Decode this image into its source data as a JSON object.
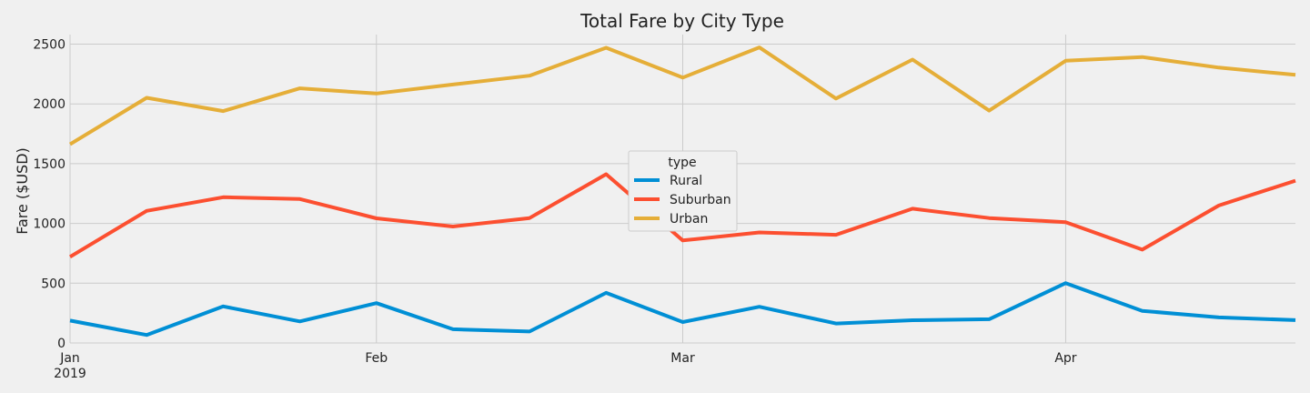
{
  "chart_data": {
    "type": "line",
    "title": "Total Fare by City Type",
    "xlabel": "",
    "ylabel": "Fare ($USD)",
    "ylim": [
      0,
      2580
    ],
    "yticks": [
      0,
      500,
      1000,
      1500,
      2000,
      2500
    ],
    "x": [
      "2019-01-06",
      "2019-01-13",
      "2019-01-20",
      "2019-01-27",
      "2019-02-03",
      "2019-02-10",
      "2019-02-17",
      "2019-02-24",
      "2019-03-03",
      "2019-03-10",
      "2019-03-17",
      "2019-03-24",
      "2019-03-31",
      "2019-04-07",
      "2019-04-14",
      "2019-04-21",
      "2019-04-28"
    ],
    "xticks": [
      {
        "label": "Jan",
        "sublabel": "2019",
        "date": "2019-01-06"
      },
      {
        "label": "Feb",
        "sublabel": "",
        "date": "2019-02-03"
      },
      {
        "label": "Mar",
        "sublabel": "",
        "date": "2019-03-03"
      },
      {
        "label": "Apr",
        "sublabel": "",
        "date": "2019-04-07"
      }
    ],
    "series": [
      {
        "name": "Rural",
        "color": "#008fd5",
        "values": [
          187,
          67,
          306,
          180,
          333,
          115,
          96,
          419,
          175,
          303,
          163,
          190,
          199,
          501,
          269,
          214,
          191
        ]
      },
      {
        "name": "Suburban",
        "color": "#fc4f30",
        "values": [
          721,
          1105,
          1219,
          1204,
          1043,
          974,
          1045,
          1412,
          858,
          925,
          905,
          1123,
          1045,
          1011,
          781,
          1150,
          1358
        ]
      },
      {
        "name": "Urban",
        "color": "#e5ae38",
        "values": [
          1662,
          2051,
          1940,
          2130,
          2087,
          2162,
          2236,
          2470,
          2220,
          2473,
          2045,
          2371,
          1944,
          2361,
          2392,
          2304,
          2243
        ]
      }
    ],
    "legend": {
      "title": "type",
      "position": "center"
    },
    "grid": true
  }
}
